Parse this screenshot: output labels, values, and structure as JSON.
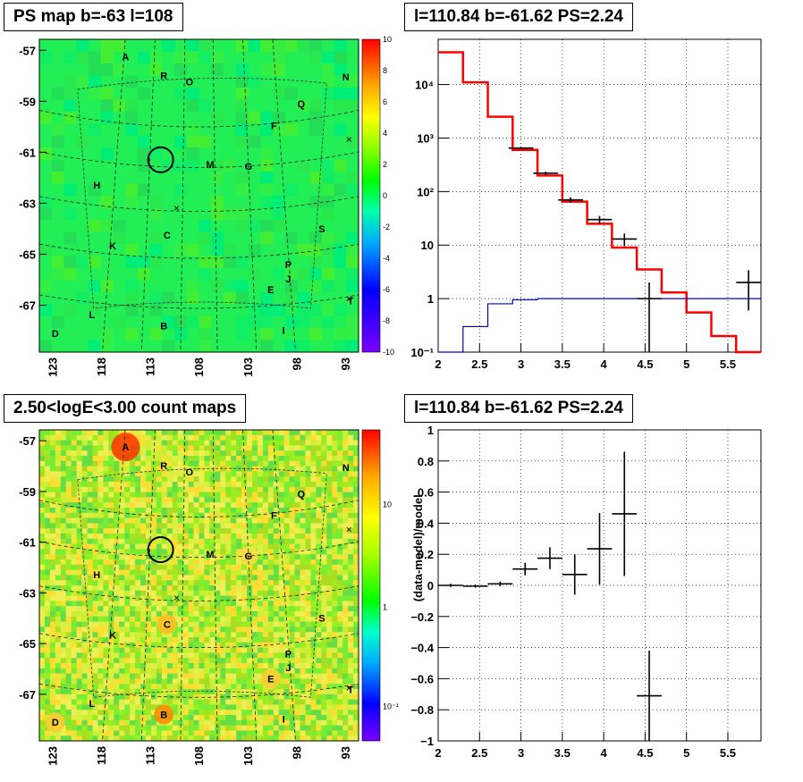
{
  "panels": {
    "tl_title": "PS map b=-63 l=108",
    "tr_title": "l=110.84 b=-61.62 PS=2.24",
    "bl_title": "2.50<logE<3.00 count maps",
    "br_title": "l=110.84 b=-61.62 PS=2.24"
  },
  "maps": {
    "y_ticks": [
      "-57",
      "-59",
      "-61",
      "-63",
      "-65",
      "-67"
    ],
    "x_ticks": [
      "123",
      "118",
      "113",
      "108",
      "103",
      "98",
      "93"
    ],
    "ps_scale_ticks": [
      "10",
      "8",
      "6",
      "4",
      "2",
      "0",
      "-2",
      "-4",
      "-6",
      "-8",
      "-10"
    ],
    "count_scale_ticks": [
      "10",
      "1",
      "10⁻¹"
    ],
    "sources": [
      {
        "n": "A",
        "fx": 0.27,
        "fy": 0.055
      },
      {
        "n": "R",
        "fx": 0.39,
        "fy": 0.115
      },
      {
        "n": "O",
        "fx": 0.47,
        "fy": 0.135
      },
      {
        "n": "N",
        "fx": 0.96,
        "fy": 0.12
      },
      {
        "n": "Q",
        "fx": 0.82,
        "fy": 0.205
      },
      {
        "n": "F",
        "fx": 0.735,
        "fy": 0.275
      },
      {
        "n": "M",
        "fx": 0.535,
        "fy": 0.4
      },
      {
        "n": "G",
        "fx": 0.655,
        "fy": 0.405
      },
      {
        "n": "H",
        "fx": 0.18,
        "fy": 0.465
      },
      {
        "n": "C",
        "fx": 0.4,
        "fy": 0.625
      },
      {
        "n": "S",
        "fx": 0.885,
        "fy": 0.605
      },
      {
        "n": "K",
        "fx": 0.23,
        "fy": 0.66
      },
      {
        "n": "P",
        "fx": 0.78,
        "fy": 0.72
      },
      {
        "n": "J",
        "fx": 0.78,
        "fy": 0.765
      },
      {
        "n": "E",
        "fx": 0.725,
        "fy": 0.8
      },
      {
        "n": "T",
        "fx": 0.975,
        "fy": 0.835
      },
      {
        "n": "L",
        "fx": 0.165,
        "fy": 0.88
      },
      {
        "n": "B",
        "fx": 0.39,
        "fy": 0.915
      },
      {
        "n": "I",
        "fx": 0.765,
        "fy": 0.93
      },
      {
        "n": "D",
        "fx": 0.05,
        "fy": 0.94
      }
    ]
  },
  "chart_data": [
    {
      "type": "line",
      "ylog": true,
      "xlim": [
        2,
        5.9
      ],
      "ylim": [
        0.1,
        70000
      ],
      "x_ticks": [
        "2",
        "2.5",
        "3",
        "3.5",
        "4",
        "4.5",
        "5",
        "5.5"
      ],
      "y_ticks": [
        "10⁻¹",
        "1",
        "10",
        "10²",
        "10³",
        "10⁴"
      ],
      "series": [
        {
          "name": "",
          "color": "#ff0000",
          "bins": [
            2,
            2.3,
            2.6,
            2.9,
            3.2,
            3.5,
            3.8,
            4.1,
            4.4,
            4.7,
            5.0,
            5.3,
            5.6,
            5.9
          ],
          "values": [
            40000,
            11000,
            2500,
            600,
            200,
            65,
            25,
            9,
            3.5,
            1.3,
            0.55,
            0.2,
            0.085
          ]
        },
        {
          "name": "",
          "color": "#0000cc",
          "bins": [
            2,
            2.3,
            2.6,
            2.9,
            3.2,
            3.5,
            3.8,
            4.1,
            4.4,
            4.7,
            5.0,
            5.3,
            5.6,
            5.9
          ],
          "values": [
            0.05,
            0.3,
            0.8,
            0.95,
            1.0,
            1.0,
            1.0,
            1.0,
            1.0,
            1.0,
            1.0,
            1.0,
            1.0
          ]
        },
        {
          "name": "",
          "color": "#000000",
          "points": [
            {
              "x": 3.0,
              "y": 650,
              "xerr": 0.15,
              "ylo": 620,
              "yhi": 680
            },
            {
              "x": 3.3,
              "y": 220,
              "xerr": 0.15,
              "ylo": 205,
              "yhi": 235
            },
            {
              "x": 3.6,
              "y": 70,
              "xerr": 0.15,
              "ylo": 62,
              "yhi": 78
            },
            {
              "x": 3.95,
              "y": 30,
              "xerr": 0.15,
              "ylo": 25,
              "yhi": 35
            },
            {
              "x": 4.25,
              "y": 13,
              "xerr": 0.15,
              "ylo": 9.5,
              "yhi": 16.5
            },
            {
              "x": 4.55,
              "y": 1.0,
              "xerr": 0.15,
              "ylo": 0.1,
              "yhi": 2.0
            },
            {
              "x": 5.75,
              "y": 2.0,
              "xerr": 0.15,
              "ylo": 0.6,
              "yhi": 3.4
            }
          ]
        }
      ]
    },
    {
      "type": "scatter",
      "xlim": [
        2,
        5.9
      ],
      "ylim": [
        -1,
        1
      ],
      "ylabel": "(data-model)/model",
      "x_ticks": [
        "2",
        "2.5",
        "3",
        "3.5",
        "4",
        "4.5",
        "5",
        "5.5"
      ],
      "y_ticks": [
        "1",
        "0.8",
        "0.6",
        "0.4",
        "0.2",
        "0",
        "−0.2",
        "−0.4",
        "−0.6",
        "−0.8",
        "−1"
      ],
      "points": [
        {
          "x": 2.15,
          "y": 0.0,
          "xerr": 0.15,
          "yerr": 0.01
        },
        {
          "x": 2.45,
          "y": -0.005,
          "xerr": 0.15,
          "yerr": 0.01
        },
        {
          "x": 2.75,
          "y": 0.01,
          "xerr": 0.15,
          "yerr": 0.015
        },
        {
          "x": 3.05,
          "y": 0.105,
          "xerr": 0.15,
          "yerr": 0.04
        },
        {
          "x": 3.35,
          "y": 0.175,
          "xerr": 0.15,
          "yerr": 0.07
        },
        {
          "x": 3.65,
          "y": 0.07,
          "xerr": 0.15,
          "yerr": 0.13
        },
        {
          "x": 3.95,
          "y": 0.235,
          "xerr": 0.15,
          "yerr": 0.23
        },
        {
          "x": 4.25,
          "y": 0.46,
          "xerr": 0.15,
          "yerr": 0.4
        },
        {
          "x": 4.55,
          "y": -0.71,
          "xerr": 0.15,
          "yerr": 0.29
        }
      ]
    }
  ]
}
